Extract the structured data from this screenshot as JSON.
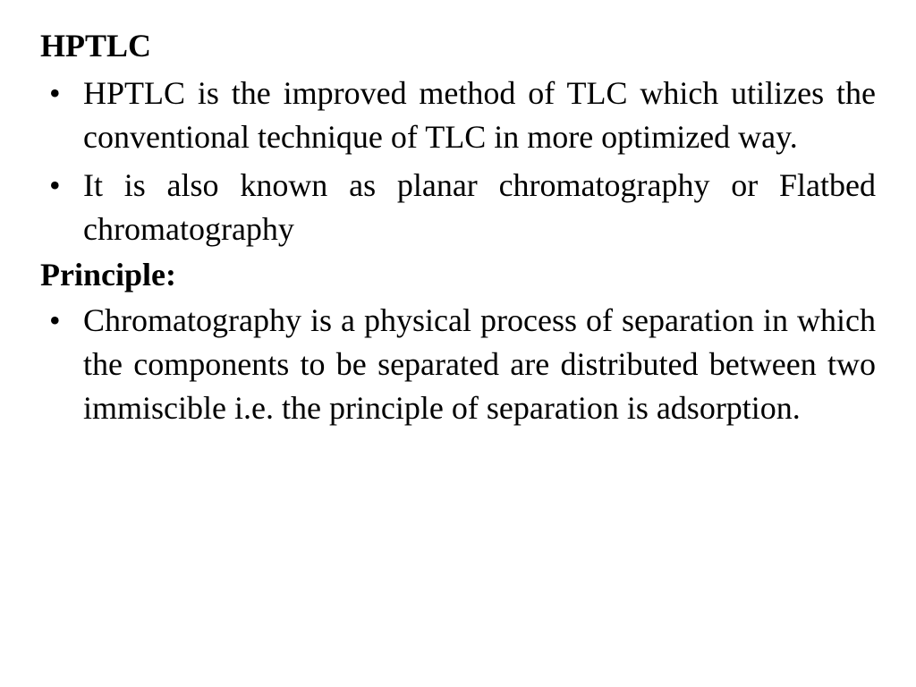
{
  "slide": {
    "title": "HPTLC",
    "bullets1": [
      "HPTLC is the improved method of TLC which utilizes the conventional technique of TLC in more optimized way.",
      "It is also known as planar chromatography or Flatbed chromatography"
    ],
    "subheading": "Principle:",
    "bullets2": [
      "Chromatography is a physical process of separation in which the components to be separated are distributed between two immiscible i.e. the principle of separation is adsorption."
    ]
  },
  "style": {
    "background_color": "#ffffff",
    "text_color": "#000000",
    "font_family": "Times New Roman",
    "heading_fontsize": 36,
    "heading_fontweight": "bold",
    "body_fontsize": 36,
    "body_fontweight": "normal",
    "subheading_fontsize": 36,
    "subheading_fontweight": "bold",
    "text_align": "justify",
    "line_height": 1.35
  }
}
